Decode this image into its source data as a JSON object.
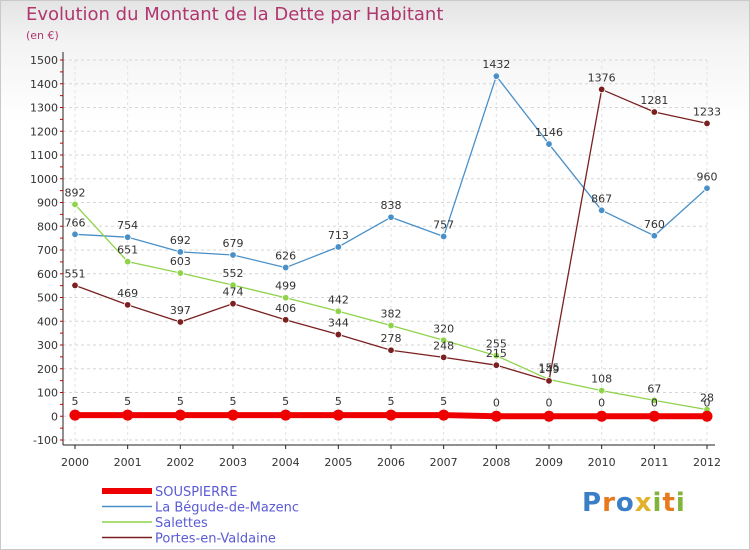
{
  "title": "Evolution du Montant de la Dette par Habitant",
  "subtitle": "(en €)",
  "logo": {
    "letters": [
      "P",
      "r",
      "o",
      "x",
      "i",
      "t",
      "i"
    ],
    "colors": [
      "#3a7fc6",
      "#e87a1e",
      "#3a7fc6",
      "#e2b12c",
      "#82b43a",
      "#e87a1e",
      "#82b43a"
    ]
  },
  "chart_data": {
    "type": "line",
    "categories": [
      "2000",
      "2001",
      "2002",
      "2003",
      "2004",
      "2005",
      "2006",
      "2007",
      "2008",
      "2009",
      "2010",
      "2011",
      "2012"
    ],
    "ylim": [
      -100,
      1500
    ],
    "yticks": [
      "-100",
      "0",
      "100",
      "200",
      "300",
      "400",
      "500",
      "600",
      "700",
      "800",
      "900",
      "1000",
      "1100",
      "1200",
      "1300",
      "1400",
      "1500"
    ],
    "grid": true,
    "legend_position": "bottom-left",
    "series": [
      {
        "name": "SOUSPIERRE",
        "color": "#ee0000",
        "values": [
          5,
          5,
          5,
          5,
          5,
          5,
          5,
          5,
          0,
          0,
          0,
          0,
          0
        ],
        "labels": [
          "5",
          "5",
          "5",
          "5",
          "5",
          "5",
          "5",
          "5",
          "0",
          "0",
          "0",
          "0",
          "0"
        ]
      },
      {
        "name": "La Bégude-de-Mazenc",
        "color": "#4a90c8",
        "values": [
          766,
          754,
          692,
          679,
          626,
          713,
          838,
          757,
          1432,
          1146,
          867,
          760,
          960
        ],
        "labels": [
          "766",
          "754",
          "692",
          "679",
          "626",
          "713",
          "838",
          "757",
          "1432",
          "1146",
          "867",
          "760",
          "960"
        ]
      },
      {
        "name": "Salettes",
        "color": "#8ed34a",
        "values": [
          892,
          651,
          603,
          552,
          499,
          442,
          382,
          320,
          255,
          155,
          108,
          67,
          28
        ],
        "labels": [
          "892",
          "651",
          "603",
          "552",
          "499",
          "442",
          "382",
          "320",
          "255",
          "155",
          "108",
          "67",
          "28"
        ]
      },
      {
        "name": "Portes-en-Valdaine",
        "color": "#7a2020",
        "values": [
          551,
          469,
          397,
          474,
          406,
          344,
          278,
          248,
          215,
          149,
          1376,
          1281,
          1233
        ],
        "labels": [
          "551",
          "469",
          "397",
          "474",
          "406",
          "344",
          "278",
          "248",
          "215",
          "149",
          "1376",
          "1281",
          "1233"
        ]
      }
    ]
  }
}
